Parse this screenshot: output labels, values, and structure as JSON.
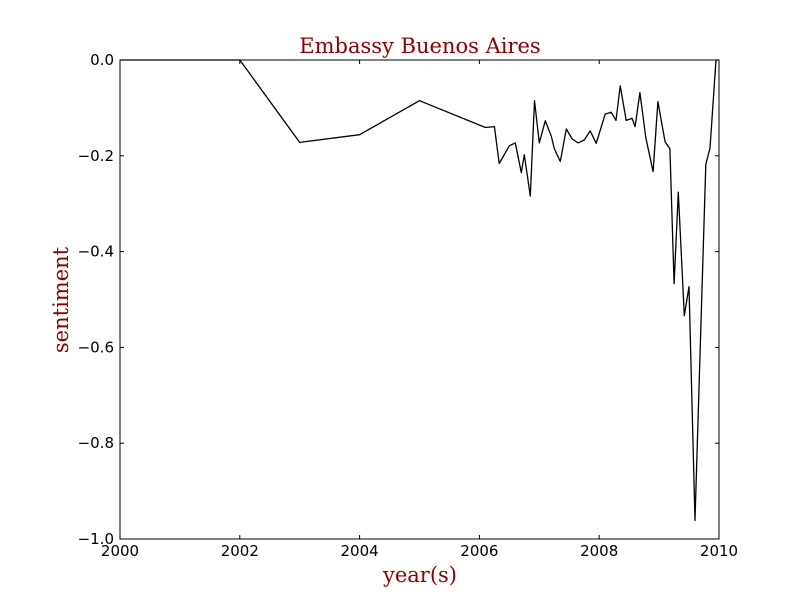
{
  "chart_data": {
    "type": "line",
    "title": "Embassy Buenos Aires",
    "xlabel": "year(s)",
    "ylabel": "sentiment",
    "xlim": [
      2000,
      2010
    ],
    "ylim": [
      -1.0,
      0.0
    ],
    "grid": false,
    "x_ticks": [
      2000,
      2002,
      2004,
      2006,
      2008,
      2010
    ],
    "x_tick_labels": [
      "2000",
      "2002",
      "2004",
      "2006",
      "2008",
      "2010"
    ],
    "y_ticks": [
      0.0,
      -0.2,
      -0.4,
      -0.6,
      -0.8,
      -1.0
    ],
    "y_tick_labels": [
      "0.0",
      "−0.2",
      "−0.4",
      "−0.6",
      "−0.8",
      "−1.0"
    ],
    "line_color": "#000000",
    "label_color": "#8b0000",
    "series": [
      {
        "x": [
          2000.0,
          2002.0,
          2003.0,
          2004.0,
          2005.0,
          2006.1,
          2006.25,
          2006.33,
          2006.5,
          2006.6,
          2006.7,
          2006.75,
          2006.85,
          2006.92,
          2007.0,
          2007.1,
          2007.2,
          2007.25,
          2007.35,
          2007.45,
          2007.55,
          2007.65,
          2007.75,
          2007.85,
          2007.95,
          2008.1,
          2008.2,
          2008.28,
          2008.35,
          2008.45,
          2008.55,
          2008.6,
          2008.68,
          2008.78,
          2008.9,
          2008.98,
          2009.1,
          2009.18,
          2009.25,
          2009.32,
          2009.42,
          2009.5,
          2009.6,
          2009.78,
          2009.85,
          2009.95,
          2010.0
        ],
        "y": [
          0.0,
          0.0,
          -0.172,
          -0.156,
          -0.085,
          -0.141,
          -0.139,
          -0.216,
          -0.179,
          -0.173,
          -0.235,
          -0.198,
          -0.284,
          -0.085,
          -0.173,
          -0.127,
          -0.159,
          -0.185,
          -0.212,
          -0.144,
          -0.165,
          -0.173,
          -0.167,
          -0.148,
          -0.174,
          -0.113,
          -0.109,
          -0.126,
          -0.054,
          -0.126,
          -0.122,
          -0.139,
          -0.068,
          -0.163,
          -0.233,
          -0.087,
          -0.171,
          -0.185,
          -0.467,
          -0.276,
          -0.534,
          -0.473,
          -0.961,
          -0.218,
          -0.184,
          0.0,
          0.0
        ]
      }
    ]
  }
}
